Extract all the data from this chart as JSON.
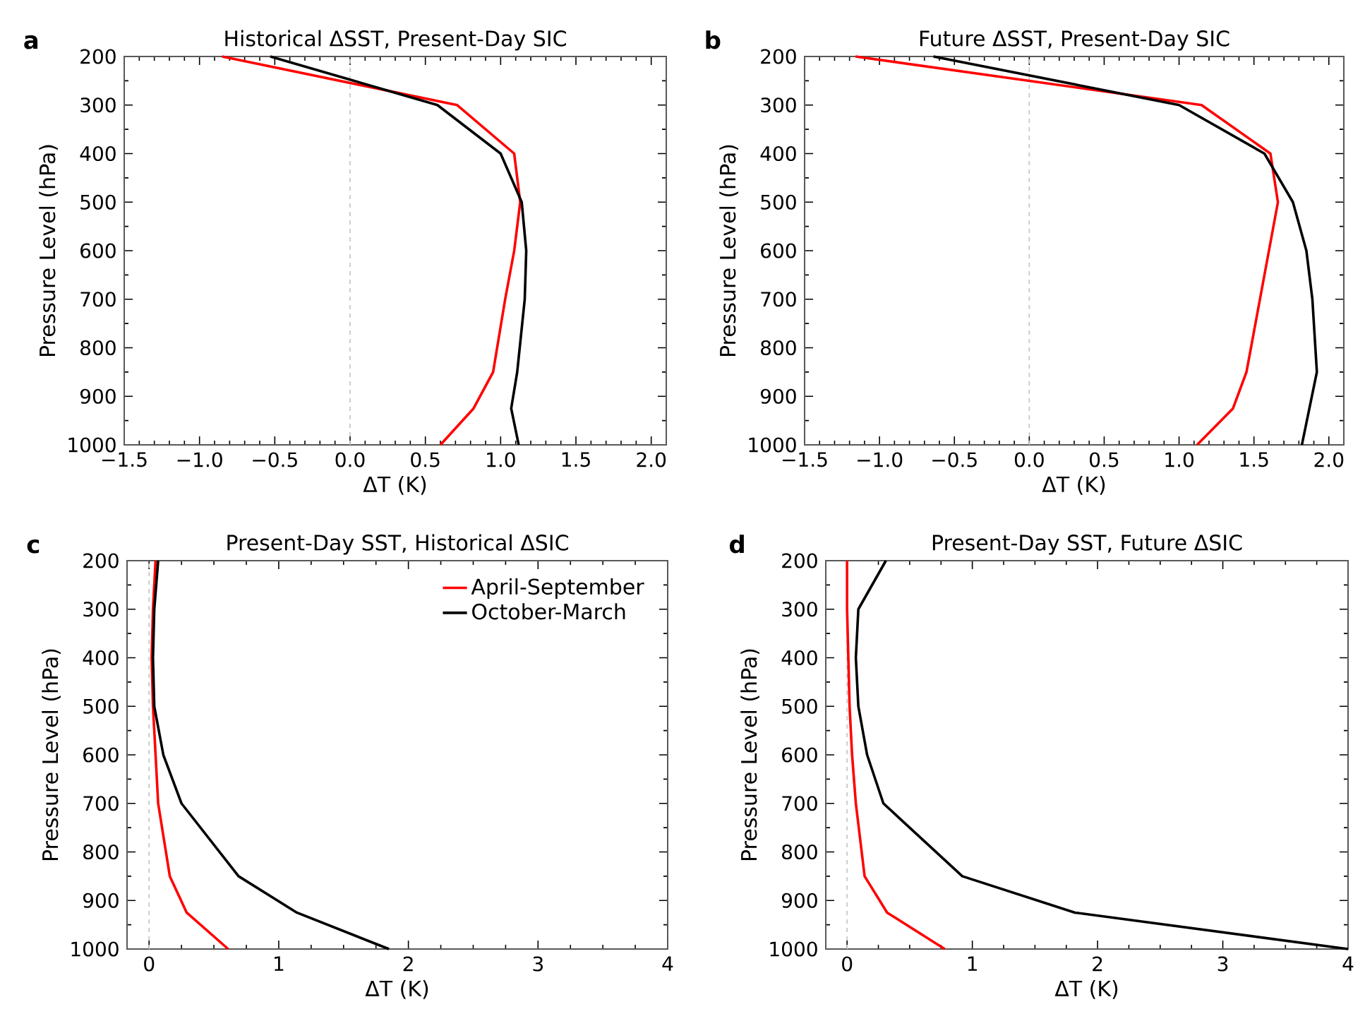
{
  "chart_data": [
    {
      "type": "line",
      "title": "Historical ΔSST, Present-Day SIC",
      "xlabel": "ΔT (K)",
      "ylabel": "Pressure Level (hPa)",
      "annotations": [
        "a"
      ],
      "xlim": [
        -1.5,
        2.1
      ],
      "ylim": [
        1000,
        200
      ],
      "xticks": [
        {
          "value": -1.5,
          "label": "−1.5"
        },
        {
          "value": -1.0,
          "label": "−1.0"
        },
        {
          "value": -0.5,
          "label": "−0.5"
        },
        {
          "value": 0,
          "label": "0.0"
        },
        {
          "value": 0.5,
          "label": "0.5"
        },
        {
          "value": 1.0,
          "label": "1.0"
        },
        {
          "value": 1.5,
          "label": "1.5"
        },
        {
          "value": 2.0,
          "label": "2.0"
        }
      ],
      "yticks": [
        200,
        300,
        400,
        500,
        600,
        700,
        800,
        900,
        1000
      ],
      "ref_lines": [
        {
          "axis": "x",
          "value": 0,
          "color": "#c8c8c8",
          "line_style": "dashed"
        }
      ],
      "series": [
        {
          "color": "#ff0000",
          "x": [
            -0.85,
            0.71,
            1.09,
            1.13,
            1.09,
            1.03,
            0.95,
            0.82,
            0.6
          ],
          "values": [
            200,
            300,
            400,
            500,
            600,
            700,
            850,
            925,
            1000
          ]
        },
        {
          "color": "#000000",
          "x": [
            -0.53,
            0.58,
            1.0,
            1.14,
            1.17,
            1.16,
            1.11,
            1.07,
            1.12
          ],
          "values": [
            200,
            300,
            400,
            500,
            600,
            700,
            850,
            925,
            1000
          ]
        }
      ]
    },
    {
      "type": "line",
      "title": "Future ΔSST, Present-Day SIC",
      "xlabel": "ΔT (K)",
      "ylabel": "Pressure Level (hPa)",
      "annotations": [
        "b"
      ],
      "xlim": [
        -1.5,
        2.1
      ],
      "ylim": [
        1000,
        200
      ],
      "xticks": [
        {
          "value": -1.5,
          "label": "−1.5"
        },
        {
          "value": -1.0,
          "label": "−1.0"
        },
        {
          "value": -0.5,
          "label": "−0.5"
        },
        {
          "value": 0,
          "label": "0.0"
        },
        {
          "value": 0.5,
          "label": "0.5"
        },
        {
          "value": 1.0,
          "label": "1.0"
        },
        {
          "value": 1.5,
          "label": "1.5"
        },
        {
          "value": 2.0,
          "label": "2.0"
        }
      ],
      "yticks": [
        200,
        300,
        400,
        500,
        600,
        700,
        800,
        900,
        1000
      ],
      "ref_lines": [
        {
          "axis": "x",
          "value": 0,
          "color": "#c8c8c8",
          "line_style": "dashed"
        }
      ],
      "series": [
        {
          "color": "#ff0000",
          "x": [
            -1.16,
            1.15,
            1.61,
            1.66,
            1.6,
            1.54,
            1.45,
            1.36,
            1.12
          ],
          "values": [
            200,
            300,
            400,
            500,
            600,
            700,
            850,
            925,
            1000
          ]
        },
        {
          "color": "#000000",
          "x": [
            -0.64,
            1.0,
            1.57,
            1.76,
            1.85,
            1.89,
            1.92,
            1.87,
            1.82
          ],
          "values": [
            200,
            300,
            400,
            500,
            600,
            700,
            850,
            925,
            1000
          ]
        }
      ]
    },
    {
      "type": "line",
      "title": "Present-Day SST, Historical ΔSIC",
      "xlabel": "ΔT (K)",
      "ylabel": "Pressure Level (hPa)",
      "annotations": [
        "c"
      ],
      "xlim": [
        -0.17,
        4
      ],
      "ylim": [
        1000,
        200
      ],
      "xticks": [
        0,
        1,
        2,
        3,
        4
      ],
      "yticks": [
        200,
        300,
        400,
        500,
        600,
        700,
        800,
        900,
        1000
      ],
      "legend": "top right",
      "ref_lines": [
        {
          "axis": "x",
          "value": 0,
          "color": "#c8c8c8",
          "line_style": "dashed"
        }
      ],
      "series": [
        {
          "name": "April-September",
          "color": "#ff0000",
          "x": [
            0.05,
            0.03,
            0.02,
            0.03,
            0.05,
            0.07,
            0.16,
            0.29,
            0.61
          ],
          "values": [
            200,
            300,
            400,
            500,
            600,
            700,
            850,
            925,
            1000
          ]
        },
        {
          "name": "October-March",
          "color": "#000000",
          "x": [
            0.07,
            0.04,
            0.03,
            0.04,
            0.11,
            0.25,
            0.69,
            1.14,
            1.85
          ],
          "values": [
            200,
            300,
            400,
            500,
            600,
            700,
            850,
            925,
            1000
          ]
        }
      ]
    },
    {
      "type": "line",
      "title": "Present-Day SST, Future ΔSIC",
      "xlabel": "ΔT (K)",
      "ylabel": "Pressure Level (hPa)",
      "annotations": [
        "d"
      ],
      "xlim": [
        -0.17,
        4
      ],
      "ylim": [
        1000,
        200
      ],
      "xticks": [
        0,
        1,
        2,
        3,
        4
      ],
      "yticks": [
        200,
        300,
        400,
        500,
        600,
        700,
        800,
        900,
        1000
      ],
      "ref_lines": [
        {
          "axis": "x",
          "value": 0,
          "color": "#c8c8c8",
          "line_style": "dashed"
        }
      ],
      "series": [
        {
          "color": "#ff0000",
          "x": [
            0.0,
            0.0,
            0.01,
            0.02,
            0.04,
            0.07,
            0.14,
            0.32,
            0.78
          ],
          "values": [
            200,
            300,
            400,
            500,
            600,
            700,
            850,
            925,
            1000
          ]
        },
        {
          "color": "#000000",
          "x": [
            0.31,
            0.09,
            0.07,
            0.09,
            0.16,
            0.29,
            0.92,
            1.82,
            4.0
          ],
          "values": [
            200,
            300,
            400,
            500,
            600,
            700,
            850,
            925,
            1000
          ]
        }
      ]
    }
  ]
}
